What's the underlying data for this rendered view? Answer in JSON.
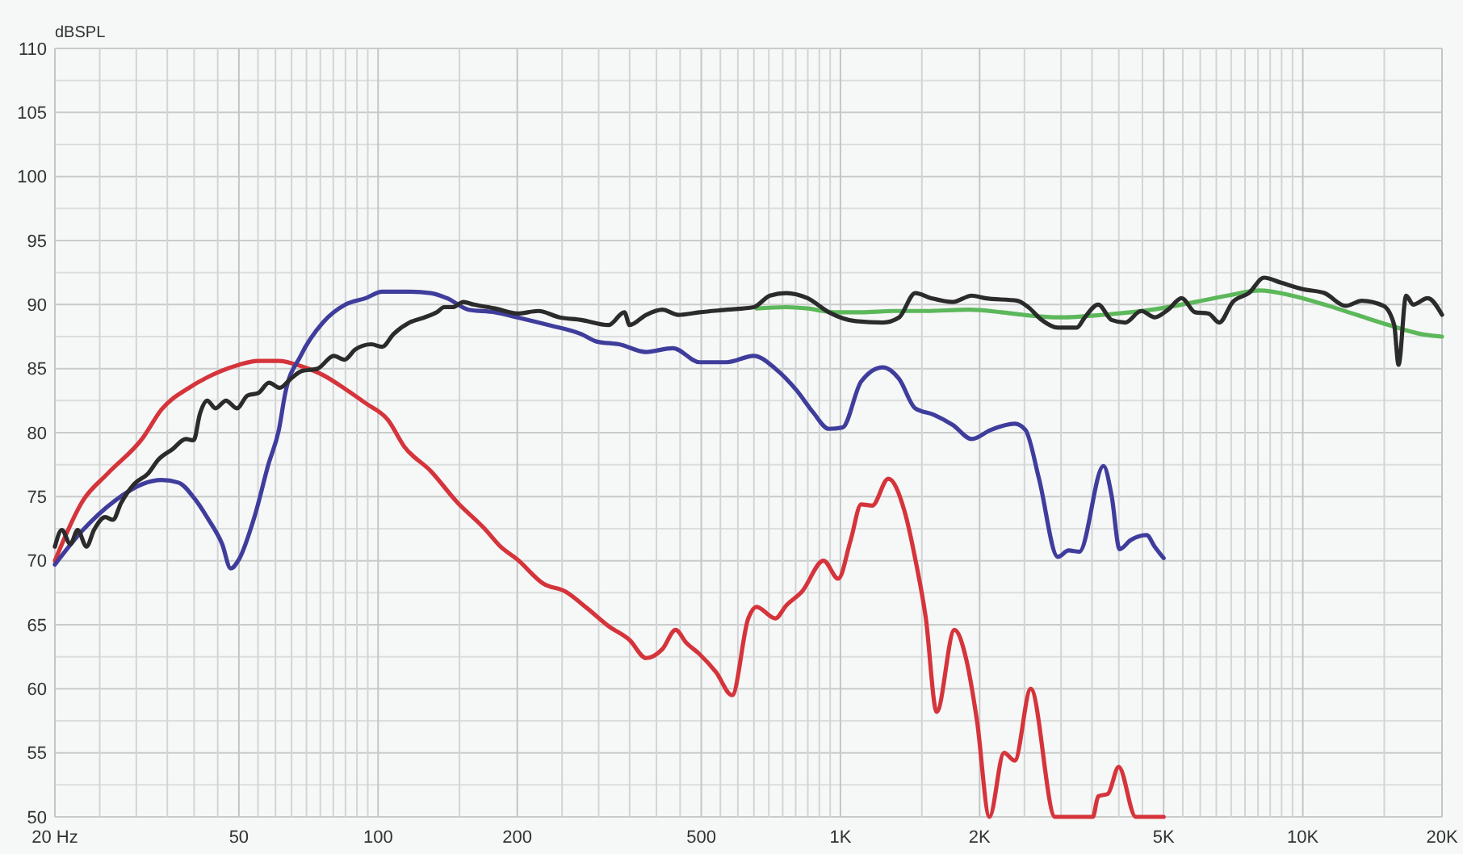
{
  "chart_data": {
    "type": "line",
    "ylabel": "dBSPL",
    "log": "x",
    "grid": true,
    "xlim": [
      20,
      20000
    ],
    "ylim": [
      50,
      110
    ],
    "xticks": [
      {
        "value": 20,
        "label": "20 Hz"
      },
      {
        "value": 25,
        "label": null
      },
      {
        "value": 30,
        "label": null
      },
      {
        "value": 35,
        "label": null
      },
      {
        "value": 40,
        "label": null
      },
      {
        "value": 45,
        "label": null
      },
      {
        "value": 50,
        "label": "50"
      },
      {
        "value": 55,
        "label": null
      },
      {
        "value": 60,
        "label": null
      },
      {
        "value": 65,
        "label": null
      },
      {
        "value": 70,
        "label": null
      },
      {
        "value": 75,
        "label": null
      },
      {
        "value": 80,
        "label": null
      },
      {
        "value": 85,
        "label": null
      },
      {
        "value": 90,
        "label": null
      },
      {
        "value": 95,
        "label": null
      },
      {
        "value": 100,
        "label": "100"
      },
      {
        "value": 150,
        "label": null
      },
      {
        "value": 200,
        "label": "200"
      },
      {
        "value": 250,
        "label": null
      },
      {
        "value": 300,
        "label": null
      },
      {
        "value": 350,
        "label": null
      },
      {
        "value": 400,
        "label": null
      },
      {
        "value": 450,
        "label": null
      },
      {
        "value": 500,
        "label": "500"
      },
      {
        "value": 550,
        "label": null
      },
      {
        "value": 600,
        "label": null
      },
      {
        "value": 650,
        "label": null
      },
      {
        "value": 700,
        "label": null
      },
      {
        "value": 750,
        "label": null
      },
      {
        "value": 800,
        "label": null
      },
      {
        "value": 850,
        "label": null
      },
      {
        "value": 900,
        "label": null
      },
      {
        "value": 950,
        "label": null
      },
      {
        "value": 1000,
        "label": "1K"
      },
      {
        "value": 1500,
        "label": null
      },
      {
        "value": 2000,
        "label": "2K"
      },
      {
        "value": 2500,
        "label": null
      },
      {
        "value": 3000,
        "label": null
      },
      {
        "value": 3500,
        "label": null
      },
      {
        "value": 4000,
        "label": null
      },
      {
        "value": 4500,
        "label": null
      },
      {
        "value": 5000,
        "label": "5K"
      },
      {
        "value": 5500,
        "label": null
      },
      {
        "value": 6000,
        "label": null
      },
      {
        "value": 6500,
        "label": null
      },
      {
        "value": 7000,
        "label": null
      },
      {
        "value": 7500,
        "label": null
      },
      {
        "value": 8000,
        "label": null
      },
      {
        "value": 8500,
        "label": null
      },
      {
        "value": 9000,
        "label": null
      },
      {
        "value": 9500,
        "label": null
      },
      {
        "value": 10000,
        "label": "10K"
      },
      {
        "value": 15000,
        "label": null
      },
      {
        "value": 20000,
        "label": "20K"
      }
    ],
    "yticks": [
      50,
      {
        "value": 52.5,
        "label": null
      },
      55,
      {
        "value": 57.5,
        "label": null
      },
      60,
      {
        "value": 62.5,
        "label": null
      },
      65,
      {
        "value": 67.5,
        "label": null
      },
      70,
      {
        "value": 72.5,
        "label": null
      },
      75,
      {
        "value": 77.5,
        "label": null
      },
      80,
      {
        "value": 82.5,
        "label": null
      },
      85,
      {
        "value": 87.5,
        "label": null
      },
      90,
      {
        "value": 92.5,
        "label": null
      },
      95,
      {
        "value": 97.5,
        "label": null
      },
      100,
      {
        "value": 102.5,
        "label": null
      },
      105,
      {
        "value": 107.5,
        "label": null
      },
      110
    ],
    "series": [
      {
        "color": "#d5343b",
        "x": [
          20,
          23,
          26,
          31,
          34,
          39,
          45,
          50,
          55,
          61,
          68,
          76,
          85,
          94,
          105,
          114,
          130,
          148,
          170,
          184,
          200,
          228,
          254,
          283,
          315,
          350,
          380,
          412,
          440,
          464,
          496,
          538,
          583,
          632,
          658,
          723,
          763,
          826,
          919,
          989,
          1052,
          1109,
          1171,
          1269,
          1375,
          1454,
          1530,
          1615,
          1764,
          1871,
          1974,
          2100,
          2258,
          2382,
          2580,
          2912,
          3514,
          3610,
          3788,
          3997,
          4352,
          5000
        ],
        "values": [
          70.0,
          74.7,
          76.8,
          79.6,
          81.8,
          83.5,
          84.7,
          85.3,
          85.6,
          85.6,
          85.2,
          84.5,
          83.4,
          82.3,
          81.0,
          78.9,
          77.0,
          74.6,
          72.5,
          71.1,
          70.1,
          68.2,
          67.6,
          66.3,
          64.9,
          63.8,
          62.4,
          63.1,
          64.6,
          63.6,
          62.7,
          61.3,
          59.5,
          65.5,
          66.4,
          65.5,
          66.5,
          67.6,
          70.0,
          68.6,
          71.6,
          74.4,
          74.3,
          76.4,
          73.9,
          70.0,
          65.5,
          58.2,
          64.6,
          62.3,
          57.5,
          50,
          55.0,
          54.4,
          60.0,
          50,
          50,
          51.6,
          51.8,
          53.9,
          50,
          50
        ]
      },
      {
        "color": "#3f3d9c",
        "x": [
          20,
          23,
          27,
          31,
          34,
          37,
          40,
          43,
          46,
          48,
          50,
          54,
          58,
          61,
          63,
          68,
          76,
          85,
          94,
          102,
          117,
          130,
          141,
          157,
          179,
          200,
          234,
          275,
          298,
          332,
          380,
          434,
          496,
          568,
          649,
          723,
          804,
          872,
          944,
          1010,
          1109,
          1235,
          1339,
          1451,
          1592,
          1750,
          1923,
          2110,
          2382,
          2514,
          2688,
          2952,
          3116,
          3286,
          3706,
          3858,
          4016,
          4240,
          4594,
          4782,
          5000
        ],
        "values": [
          69.7,
          72.4,
          74.7,
          76.0,
          76.3,
          76.1,
          74.9,
          73.2,
          71.3,
          69.4,
          70.1,
          73.4,
          77.6,
          80.2,
          83.1,
          86.0,
          88.6,
          90.0,
          90.5,
          91.0,
          91.0,
          90.9,
          90.5,
          89.6,
          89.4,
          89.0,
          88.4,
          87.7,
          87.1,
          86.9,
          86.3,
          86.6,
          85.5,
          85.5,
          86.0,
          85.0,
          83.3,
          81.6,
          80.3,
          80.4,
          84.0,
          85.1,
          84.2,
          81.9,
          81.4,
          80.6,
          79.5,
          80.2,
          80.7,
          80.2,
          76.4,
          70.3,
          70.8,
          70.7,
          77.4,
          75.1,
          70.9,
          71.6,
          72.0,
          71.1,
          70.2
        ]
      },
      {
        "color": "#5cb85a",
        "x": [
          658,
          763,
          849,
          971,
          1109,
          1303,
          1530,
          1897,
          2228,
          2480,
          2992,
          3706,
          4718,
          5848,
          6868,
          8068,
          9476,
          11132,
          13070,
          15354,
          18026,
          20000
        ],
        "values": [
          89.7,
          89.8,
          89.7,
          89.4,
          89.4,
          89.5,
          89.5,
          89.6,
          89.4,
          89.2,
          89.0,
          89.2,
          89.6,
          90.2,
          90.7,
          91.1,
          90.7,
          90.0,
          89.2,
          88.4,
          87.7,
          87.5
        ]
      },
      {
        "color": "#2b2b2b",
        "x": [
          20,
          20.7,
          21.6,
          22.4,
          23.4,
          24.3,
          25.7,
          26.7,
          27.8,
          29.7,
          31.8,
          33.5,
          35.9,
          38.4,
          39.9,
          41.2,
          42.7,
          44.5,
          46.9,
          49.5,
          52.2,
          55.1,
          58.1,
          61.3,
          64.7,
          68.3,
          74,
          80.2,
          84.6,
          89.3,
          96.7,
          102,
          108,
          117,
          126,
          134,
          139,
          145,
          153,
          161,
          179,
          200,
          222,
          247,
          275,
          315,
          341,
          350,
          380,
          412,
          446,
          496,
          568,
          649,
          704,
          763,
          849,
          944,
          1080,
          1235,
          1339,
          1451,
          1572,
          1750,
          1923,
          2055,
          2414,
          2548,
          2724,
          2952,
          3244,
          3376,
          3610,
          3858,
          4128,
          4472,
          4782,
          5112,
          5470,
          5848,
          6252,
          6598,
          7054,
          7644,
          8246,
          8980,
          10000,
          11132,
          12384,
          13422,
          14944,
          15762,
          16108,
          16728,
          17320,
          18618,
          20000
        ],
        "values": [
          71.1,
          72.4,
          71.3,
          72.4,
          71.1,
          72.4,
          73.4,
          73.2,
          74.5,
          76.0,
          76.8,
          77.9,
          78.7,
          79.5,
          79.4,
          81.5,
          82.5,
          81.9,
          82.5,
          81.9,
          82.9,
          83.1,
          83.9,
          83.5,
          84.2,
          84.8,
          85.0,
          86.0,
          85.7,
          86.5,
          86.9,
          86.7,
          87.7,
          88.6,
          89.0,
          89.4,
          89.8,
          89.8,
          90.2,
          90.0,
          89.7,
          89.3,
          89.5,
          89.0,
          88.8,
          88.4,
          89.4,
          88.4,
          89.2,
          89.6,
          89.2,
          89.4,
          89.6,
          89.8,
          90.7,
          90.9,
          90.5,
          89.4,
          88.7,
          88.6,
          89.0,
          90.9,
          90.5,
          90.2,
          90.7,
          90.5,
          90.3,
          89.8,
          88.8,
          88.2,
          88.2,
          89.0,
          90.0,
          88.8,
          88.6,
          89.5,
          89.0,
          89.6,
          90.5,
          89.4,
          89.3,
          88.6,
          90.2,
          90.9,
          92.1,
          91.7,
          91.2,
          90.9,
          89.9,
          90.3,
          89.9,
          88.4,
          85.3,
          90.7,
          90.0,
          90.5,
          89.2
        ]
      }
    ]
  }
}
